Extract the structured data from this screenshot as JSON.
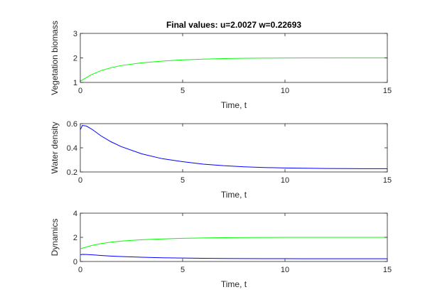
{
  "figure": {
    "title": "Final values: u=2.0027  w=0.22693"
  },
  "colors": {
    "vegetation": "#00ff00",
    "water": "#0000ff",
    "axis": "#262626"
  },
  "chart_data": [
    {
      "type": "line",
      "title": "Final values: u=2.0027  w=0.22693",
      "xlabel": "Time, t",
      "ylabel": "Vegetation biomass",
      "xlim": [
        0,
        15
      ],
      "ylim": [
        1,
        3
      ],
      "xticks": [
        0,
        5,
        10,
        15
      ],
      "yticks": [
        1,
        2,
        3
      ],
      "grid": false,
      "series": [
        {
          "color": "#00ff00",
          "x": [
            0,
            0.5,
            1,
            1.5,
            2,
            3,
            4,
            5,
            6,
            7,
            8,
            9,
            10,
            11,
            12,
            13,
            14,
            15
          ],
          "y": [
            1.05,
            1.3,
            1.48,
            1.6,
            1.69,
            1.8,
            1.87,
            1.92,
            1.95,
            1.97,
            1.985,
            1.993,
            1.997,
            2.0,
            2.001,
            2.002,
            2.0025,
            2.0027
          ]
        }
      ]
    },
    {
      "type": "line",
      "title": "",
      "xlabel": "Time, t",
      "ylabel": "Water density",
      "xlim": [
        0,
        15
      ],
      "ylim": [
        0.2,
        0.6
      ],
      "xticks": [
        0,
        5,
        10,
        15
      ],
      "yticks": [
        0.2,
        0.4,
        0.6
      ],
      "grid": false,
      "series": [
        {
          "color": "#0000ff",
          "x": [
            0,
            0.1,
            0.3,
            0.6,
            1,
            1.5,
            2,
            3,
            4,
            5,
            6,
            7,
            8,
            9,
            10,
            11,
            12,
            13,
            14,
            15
          ],
          "y": [
            0.55,
            0.585,
            0.58,
            0.55,
            0.5,
            0.45,
            0.41,
            0.35,
            0.31,
            0.285,
            0.265,
            0.252,
            0.243,
            0.237,
            0.233,
            0.231,
            0.229,
            0.228,
            0.2272,
            0.2269
          ]
        }
      ]
    },
    {
      "type": "line",
      "title": "",
      "xlabel": "Time, t",
      "ylabel": "Dynamics",
      "xlim": [
        0,
        15
      ],
      "ylim": [
        0,
        4
      ],
      "xticks": [
        0,
        5,
        10,
        15
      ],
      "yticks": [
        0,
        2,
        4
      ],
      "grid": false,
      "series": [
        {
          "color": "#00ff00",
          "x": [
            0,
            0.5,
            1,
            1.5,
            2,
            3,
            4,
            5,
            6,
            7,
            8,
            9,
            10,
            11,
            12,
            13,
            14,
            15
          ],
          "y": [
            1.05,
            1.3,
            1.48,
            1.6,
            1.69,
            1.8,
            1.87,
            1.92,
            1.95,
            1.97,
            1.985,
            1.993,
            1.997,
            2.0,
            2.001,
            2.002,
            2.0025,
            2.0027
          ]
        },
        {
          "color": "#0000ff",
          "x": [
            0,
            0.1,
            0.3,
            0.6,
            1,
            1.5,
            2,
            3,
            4,
            5,
            6,
            7,
            8,
            9,
            10,
            11,
            12,
            13,
            14,
            15
          ],
          "y": [
            0.55,
            0.585,
            0.58,
            0.55,
            0.5,
            0.45,
            0.41,
            0.35,
            0.31,
            0.285,
            0.265,
            0.252,
            0.243,
            0.237,
            0.233,
            0.231,
            0.229,
            0.228,
            0.2272,
            0.2269
          ]
        }
      ]
    }
  ]
}
